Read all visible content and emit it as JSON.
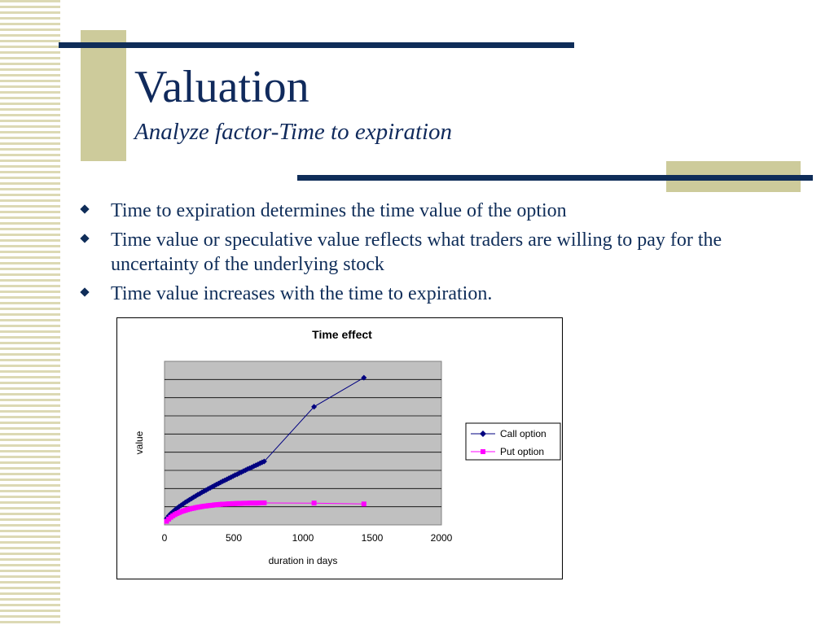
{
  "slide": {
    "title": "Valuation",
    "subtitle": "Analyze factor-Time to expiration",
    "bullets": [
      "Time to expiration determines the time value of the option",
      "Time value or speculative value reflects what traders are willing to pay for the uncertainty of the underlying stock",
      "Time value increases with the time to expiration."
    ]
  },
  "colors": {
    "navy": "#0f2d59",
    "khaki": "#cdcb9b",
    "plot_bg": "#c0c0c0",
    "call": "#000080",
    "put": "#ff00ff"
  },
  "chart_data": {
    "type": "scatter",
    "title": "Time effect",
    "xlabel": "duration in days",
    "ylabel": "value",
    "xlim": [
      0,
      2000
    ],
    "ylim": [
      0,
      9
    ],
    "x_ticks": [
      "0",
      "500",
      "1000",
      "1500",
      "2000"
    ],
    "y_gridlines": 9,
    "grid": true,
    "legend": "right",
    "series": [
      {
        "name": "Call option",
        "marker": "diamond",
        "x": [
          15,
          30,
          45,
          60,
          75,
          90,
          105,
          120,
          135,
          150,
          165,
          180,
          195,
          210,
          225,
          240,
          255,
          270,
          285,
          300,
          315,
          330,
          345,
          360,
          375,
          390,
          405,
          420,
          435,
          450,
          465,
          480,
          495,
          510,
          525,
          540,
          555,
          570,
          585,
          600,
          615,
          630,
          645,
          660,
          675,
          690,
          705,
          720,
          1080,
          1440
        ],
        "y": [
          0.35,
          0.5,
          0.62,
          0.72,
          0.82,
          0.91,
          1.0,
          1.08,
          1.16,
          1.24,
          1.31,
          1.38,
          1.45,
          1.52,
          1.59,
          1.66,
          1.72,
          1.79,
          1.85,
          1.91,
          1.98,
          2.04,
          2.1,
          2.16,
          2.22,
          2.28,
          2.34,
          2.4,
          2.45,
          2.51,
          2.57,
          2.62,
          2.68,
          2.74,
          2.79,
          2.85,
          2.9,
          2.96,
          3.01,
          3.07,
          3.12,
          3.17,
          3.23,
          3.28,
          3.33,
          3.39,
          3.44,
          3.49,
          6.5,
          8.1
        ]
      },
      {
        "name": "Put option",
        "marker": "square",
        "x": [
          15,
          30,
          45,
          60,
          75,
          90,
          105,
          120,
          135,
          150,
          165,
          180,
          195,
          210,
          225,
          240,
          255,
          270,
          285,
          300,
          315,
          330,
          345,
          360,
          375,
          390,
          405,
          420,
          435,
          450,
          465,
          480,
          495,
          510,
          525,
          540,
          555,
          570,
          585,
          600,
          615,
          630,
          645,
          660,
          675,
          690,
          705,
          720,
          1080,
          1440
        ],
        "y": [
          0.2,
          0.32,
          0.42,
          0.5,
          0.57,
          0.63,
          0.68,
          0.73,
          0.77,
          0.8,
          0.84,
          0.87,
          0.9,
          0.92,
          0.95,
          0.97,
          0.99,
          1.01,
          1.03,
          1.04,
          1.06,
          1.07,
          1.08,
          1.1,
          1.11,
          1.12,
          1.13,
          1.14,
          1.14,
          1.15,
          1.16,
          1.16,
          1.17,
          1.17,
          1.18,
          1.18,
          1.18,
          1.19,
          1.19,
          1.19,
          1.2,
          1.2,
          1.2,
          1.2,
          1.2,
          1.21,
          1.21,
          1.21,
          1.2,
          1.15
        ]
      }
    ]
  }
}
